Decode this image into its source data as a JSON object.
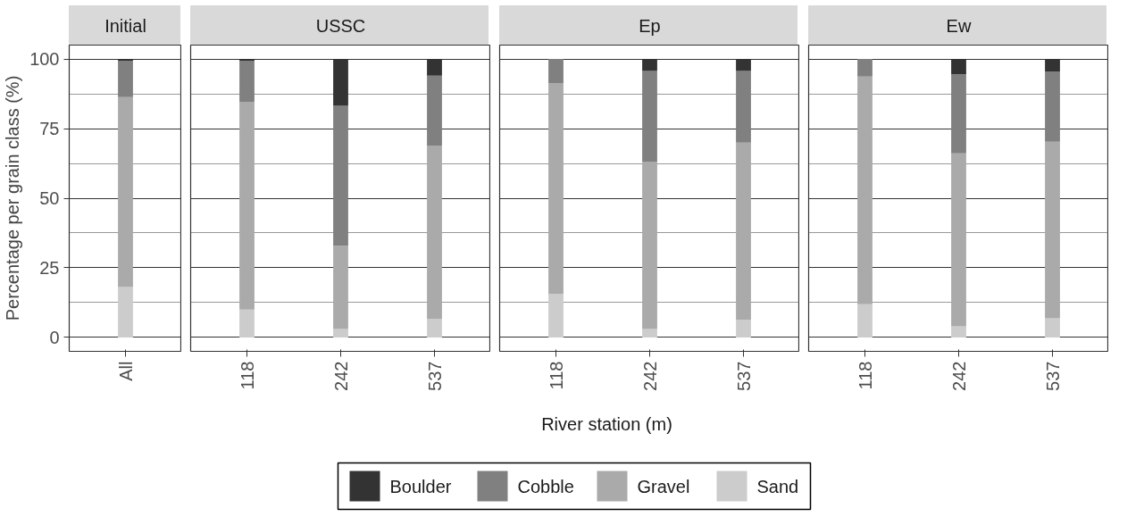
{
  "chart_data": [
    {
      "type": "bar",
      "title": "Initial",
      "ylabel": "Percentage per grain class (%)",
      "categories": [
        "All"
      ],
      "stacked": true,
      "ylim": [
        -5,
        105
      ],
      "yticks": [
        0,
        25,
        50,
        75,
        100
      ],
      "grid": "y",
      "legend": "bottom",
      "series": [
        {
          "name": "Sand",
          "color": "#cccccc",
          "values": [
            18.1
          ]
        },
        {
          "name": "Gravel",
          "color": "#aaaaaa",
          "values": [
            68.2
          ]
        },
        {
          "name": "Cobble",
          "color": "#808080",
          "values": [
            13.1
          ]
        },
        {
          "name": "Boulder",
          "color": "#333333",
          "values": [
            0.6
          ]
        }
      ]
    },
    {
      "type": "bar",
      "title": "USSC",
      "categories": [
        "118",
        "242",
        "537"
      ],
      "stacked": true,
      "ylim": [
        -5,
        105
      ],
      "yticks": [
        0,
        25,
        50,
        75,
        100
      ],
      "grid": "y",
      "tick_labels": "x",
      "series": [
        {
          "color": "#cccccc",
          "values": [
            10.0,
            3.0,
            6.7
          ]
        },
        {
          "color": "#aaaaaa",
          "values": [
            74.5,
            29.9,
            62.2
          ]
        },
        {
          "color": "#808080",
          "values": [
            14.9,
            50.3,
            25.1
          ]
        },
        {
          "color": "#333333",
          "values": [
            0.6,
            16.8,
            6.0
          ]
        }
      ]
    },
    {
      "type": "bar",
      "title": "Ep",
      "xlabel": "River station (m)",
      "categories": [
        "118",
        "242",
        "537"
      ],
      "stacked": true,
      "ylim": [
        -5,
        105
      ],
      "yticks": [
        0,
        25,
        50,
        75,
        100
      ],
      "grid": "y",
      "tick_labels": "x",
      "series": [
        {
          "color": "#cccccc",
          "values": [
            15.7,
            3.0,
            6.4
          ]
        },
        {
          "color": "#aaaaaa",
          "values": [
            75.5,
            60.0,
            63.6
          ]
        },
        {
          "color": "#808080",
          "values": [
            8.8,
            32.7,
            25.7
          ]
        },
        {
          "color": "#333333",
          "values": [
            0,
            4.3,
            4.3
          ]
        }
      ]
    },
    {
      "type": "bar",
      "title": "Ew",
      "categories": [
        "118",
        "242",
        "537"
      ],
      "stacked": true,
      "ylim": [
        -5,
        105
      ],
      "yticks": [
        0,
        25,
        50,
        75,
        100
      ],
      "grid": "y",
      "tick_labels": "x",
      "series": [
        {
          "color": "#cccccc",
          "values": [
            11.9,
            4.0,
            6.9
          ]
        },
        {
          "color": "#aaaaaa",
          "values": [
            81.8,
            62.1,
            63.4
          ]
        },
        {
          "color": "#808080",
          "values": [
            6.3,
            28.4,
            25.2
          ]
        },
        {
          "color": "#333333",
          "values": [
            0,
            5.5,
            4.5
          ]
        }
      ]
    }
  ]
}
